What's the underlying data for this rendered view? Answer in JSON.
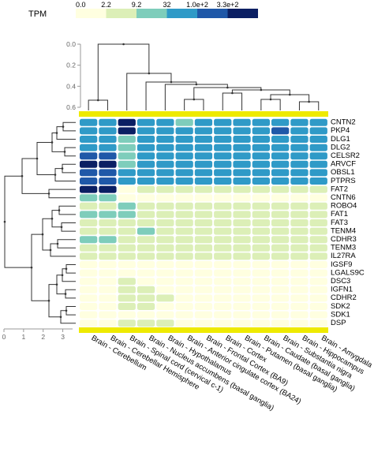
{
  "chart_data": {
    "type": "heatmap",
    "legend": {
      "title": "TPM",
      "labels": [
        "0.0",
        "2.2",
        "9.2",
        "32",
        "1.0e+2",
        "3.3e+2"
      ],
      "colors": [
        "#ffffe0",
        "#dcefb7",
        "#7ecdbb",
        "#2f9ac7",
        "#1f58a8",
        "#0b1f63"
      ]
    },
    "columns": [
      "Brain - Cerebellum",
      "Brain - Cerebellar Hemisphere",
      "Brain - Spinal cord (cervical c-1)",
      "Brain - Nucleus accumbens (basal ganglia)",
      "Brain - Hypothalamus",
      "Brain - Anterior cingulate cortex (BA24)",
      "Brain - Frontal Cortex (BA9)",
      "Brain - Cortex",
      "Brain - Putamen (basal ganglia)",
      "Brain - Caudate (basal ganglia)",
      "Brain - Substantia nigra",
      "Brain - Hippocampus",
      "Brain - Amygdala"
    ],
    "rows": [
      "CNTN2",
      "PKP4",
      "DLG1",
      "DLG2",
      "CELSR2",
      "ARVCF",
      "OBSL1",
      "PTPRS",
      "FAT2",
      "CNTN6",
      "ROBO4",
      "FAT1",
      "FAT3",
      "TENM4",
      "CDHR3",
      "TENM3",
      "IL27RA",
      "IGSF9",
      "LGALS9C",
      "DSC3",
      "IGFN1",
      "CDHR2",
      "SDK2",
      "SDK1",
      "DSP"
    ],
    "values": [
      [
        3,
        3,
        5,
        3,
        3,
        2,
        3,
        3,
        3,
        3,
        3,
        3,
        3
      ],
      [
        3,
        3,
        5,
        3,
        3,
        3,
        3,
        3,
        3,
        3,
        4,
        3,
        3
      ],
      [
        3,
        3,
        2,
        3,
        3,
        3,
        3,
        3,
        3,
        3,
        3,
        3,
        3
      ],
      [
        3,
        3,
        2,
        3,
        3,
        3,
        3,
        3,
        3,
        3,
        3,
        3,
        3
      ],
      [
        4,
        4,
        2,
        3,
        3,
        3,
        3,
        3,
        3,
        3,
        3,
        3,
        3
      ],
      [
        5,
        5,
        2,
        3,
        3,
        3,
        3,
        3,
        3,
        3,
        3,
        3,
        3
      ],
      [
        4,
        4,
        3,
        3,
        3,
        3,
        3,
        3,
        3,
        3,
        3,
        3,
        3
      ],
      [
        4,
        4,
        3,
        3,
        3,
        3,
        3,
        3,
        3,
        3,
        3,
        3,
        3
      ],
      [
        5,
        5,
        0,
        1,
        1,
        1,
        1,
        1,
        1,
        1,
        1,
        1,
        1
      ],
      [
        2,
        2,
        0,
        0,
        0,
        0,
        0,
        0,
        0,
        0,
        0,
        0,
        0
      ],
      [
        1,
        1,
        2,
        1,
        1,
        1,
        1,
        1,
        1,
        1,
        1,
        1,
        1
      ],
      [
        2,
        2,
        2,
        1,
        1,
        1,
        1,
        1,
        1,
        1,
        1,
        1,
        1
      ],
      [
        1,
        1,
        1,
        1,
        1,
        1,
        1,
        1,
        1,
        1,
        1,
        1,
        1
      ],
      [
        1,
        1,
        1,
        2,
        1,
        1,
        1,
        1,
        1,
        1,
        1,
        1,
        1
      ],
      [
        2,
        2,
        1,
        1,
        1,
        1,
        1,
        1,
        1,
        1,
        1,
        1,
        1
      ],
      [
        1,
        1,
        1,
        1,
        1,
        1,
        1,
        1,
        1,
        1,
        1,
        1,
        1
      ],
      [
        1,
        1,
        1,
        1,
        1,
        1,
        1,
        1,
        1,
        1,
        1,
        1,
        1
      ],
      [
        0,
        0,
        0,
        0,
        0,
        0,
        0,
        0,
        0,
        0,
        0,
        0,
        0
      ],
      [
        0,
        0,
        0,
        0,
        0,
        0,
        0,
        0,
        0,
        0,
        0,
        0,
        0
      ],
      [
        0,
        0,
        1,
        0,
        0,
        0,
        0,
        0,
        0,
        0,
        0,
        0,
        0
      ],
      [
        0,
        0,
        1,
        1,
        0,
        0,
        0,
        0,
        0,
        0,
        0,
        0,
        0
      ],
      [
        0,
        0,
        1,
        1,
        1,
        0,
        0,
        0,
        0,
        0,
        0,
        0,
        0
      ],
      [
        0,
        0,
        1,
        1,
        0,
        0,
        0,
        0,
        0,
        0,
        0,
        0,
        0
      ],
      [
        0,
        0,
        0,
        0,
        0,
        0,
        0,
        0,
        0,
        0,
        0,
        0,
        0
      ],
      [
        0,
        0,
        1,
        1,
        1,
        0,
        0,
        0,
        0,
        0,
        0,
        0,
        0
      ]
    ],
    "top_axis": {
      "ticks": [
        "0.0",
        "0.2",
        "0.4",
        "0.6"
      ],
      "range": [
        0,
        0.6
      ]
    },
    "left_axis": {
      "ticks": [
        "0",
        "1",
        "2",
        "3"
      ],
      "range": [
        0,
        3.5
      ]
    }
  }
}
